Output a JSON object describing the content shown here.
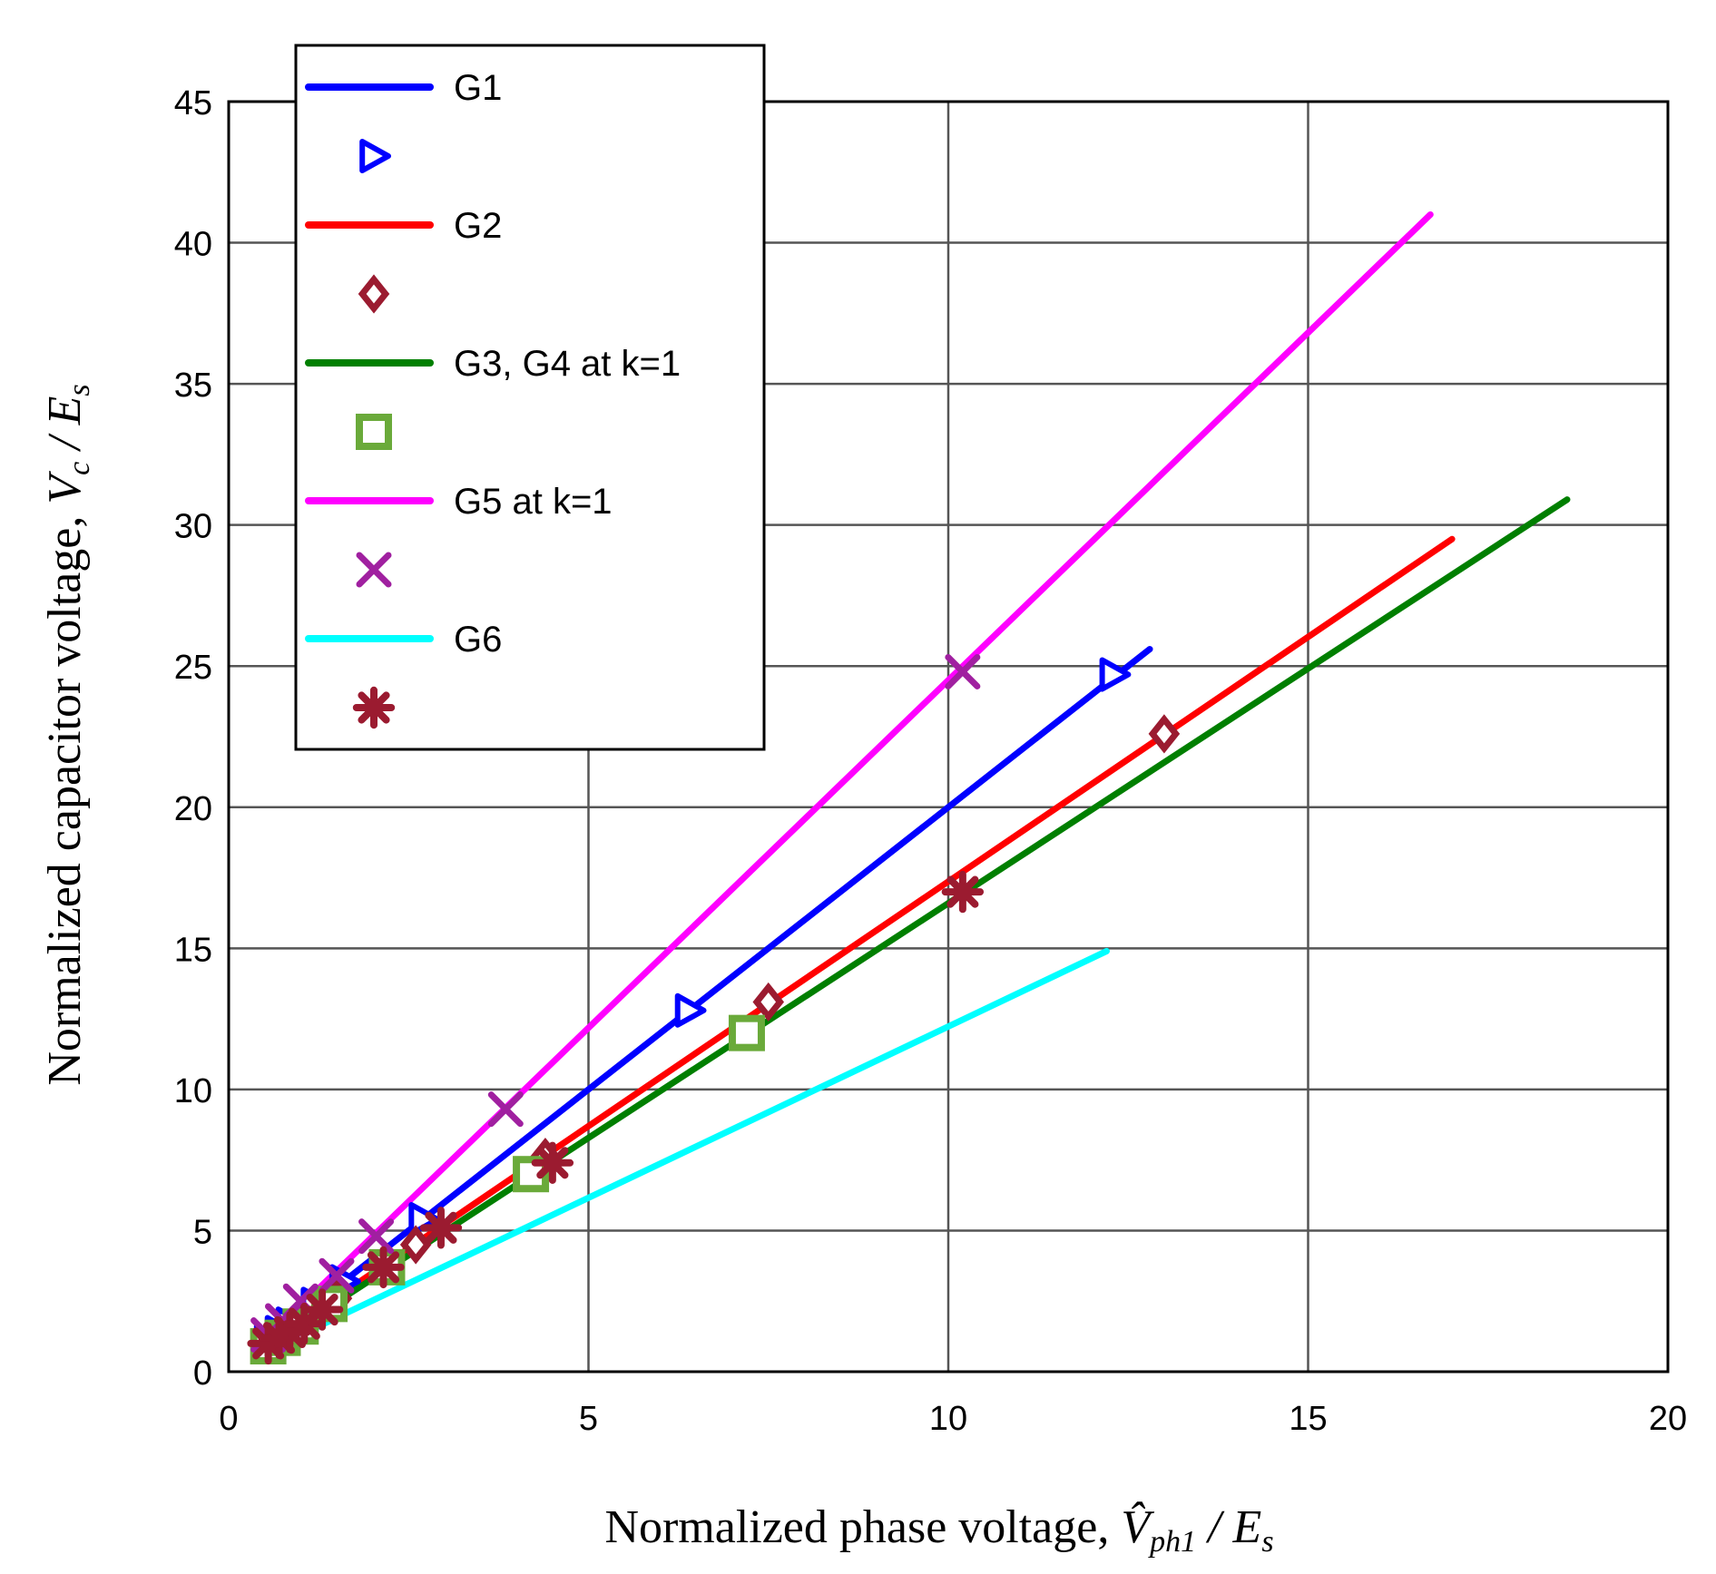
{
  "chart_data": {
    "type": "line",
    "title": "",
    "xlabel": "Normalized phase voltage, V̂ph1 / Es",
    "ylabel": "Normalized capacitor voltage, Vc / Es",
    "xlabel_main": "Normalized phase voltage, ",
    "xlabel_var": "V̂",
    "xlabel_sub": "ph1",
    "xlabel_tail": " / E",
    "xlabel_tail_sub": "s",
    "ylabel_main": "Normalized capacitor voltage, ",
    "ylabel_var": "V",
    "ylabel_sub": "c",
    "ylabel_tail": " / E",
    "ylabel_tail_sub": "s",
    "xlim": [
      0,
      20
    ],
    "ylim": [
      0,
      45
    ],
    "xticks": [
      "0",
      "5",
      "10",
      "15",
      "20"
    ],
    "yticks": [
      "0",
      "5",
      "10",
      "15",
      "20",
      "25",
      "30",
      "35",
      "40",
      "45"
    ],
    "grid": true,
    "legend_position": "top-left",
    "series": [
      {
        "name": "G1",
        "color": "#0000ff",
        "marker": "triangle-right",
        "marker_color": "#0000ff",
        "line": [
          [
            0.5,
            1.0
          ],
          [
            12.8,
            25.6
          ]
        ],
        "markers": [
          [
            0.55,
            1.1
          ],
          [
            0.7,
            1.4
          ],
          [
            0.85,
            1.7
          ],
          [
            1.2,
            2.4
          ],
          [
            1.6,
            3.2
          ],
          [
            2.7,
            5.4
          ],
          [
            6.4,
            12.8
          ],
          [
            12.3,
            24.7
          ]
        ]
      },
      {
        "name": "G2",
        "color": "#ff0000",
        "marker": "diamond",
        "marker_color": "#9b1b30",
        "line": [
          [
            0.5,
            0.9
          ],
          [
            17.0,
            29.5
          ]
        ],
        "markers": [
          [
            0.6,
            1.1
          ],
          [
            0.8,
            1.4
          ],
          [
            1.0,
            1.8
          ],
          [
            1.5,
            2.6
          ],
          [
            2.6,
            4.5
          ],
          [
            4.4,
            7.6
          ],
          [
            7.5,
            13.1
          ],
          [
            13.0,
            22.6
          ]
        ]
      },
      {
        "name": "G3, G4 at k=1",
        "color": "#007f00",
        "marker": "square",
        "marker_color": "#6aaa3a",
        "line": [
          [
            0.5,
            0.8
          ],
          [
            18.6,
            30.9
          ]
        ],
        "markers": [
          [
            0.55,
            0.9
          ],
          [
            0.75,
            1.2
          ],
          [
            1.0,
            1.6
          ],
          [
            1.4,
            2.4
          ],
          [
            2.2,
            3.7
          ],
          [
            4.2,
            7.0
          ],
          [
            7.2,
            12.0
          ]
        ]
      },
      {
        "name": "G5 at k=1",
        "color": "#ff00ff",
        "marker": "x",
        "marker_color": "#a020a0",
        "line": [
          [
            0.5,
            1.1
          ],
          [
            16.7,
            41.0
          ]
        ],
        "markers": [
          [
            0.55,
            1.3
          ],
          [
            0.75,
            1.8
          ],
          [
            1.0,
            2.5
          ],
          [
            1.5,
            3.4
          ],
          [
            2.05,
            4.8
          ],
          [
            3.85,
            9.3
          ],
          [
            10.2,
            24.8
          ]
        ]
      },
      {
        "name": "G6",
        "color": "#00ffff",
        "marker": "asterisk",
        "marker_color": "#9b1b30",
        "line": [
          [
            0.5,
            0.7
          ],
          [
            12.2,
            14.9
          ]
        ],
        "markers": [
          [
            0.55,
            1.0
          ],
          [
            0.7,
            1.2
          ],
          [
            0.85,
            1.4
          ],
          [
            1.05,
            1.7
          ],
          [
            1.3,
            2.2
          ],
          [
            2.15,
            3.7
          ],
          [
            2.95,
            5.1
          ],
          [
            4.5,
            7.4
          ],
          [
            10.2,
            17.0
          ]
        ]
      }
    ]
  }
}
